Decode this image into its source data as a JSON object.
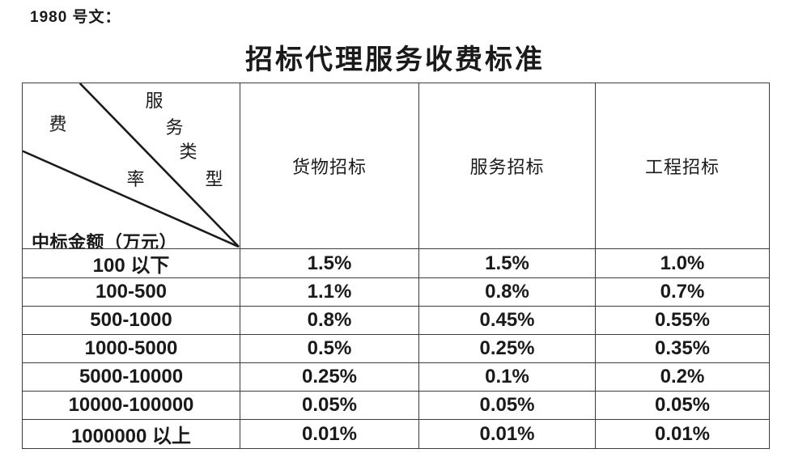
{
  "doc_ref": "1980 号文：",
  "title": "招标代理服务收费标准",
  "colors": {
    "text": "#1a1a1a",
    "border": "#3c3c3c",
    "background": "#ffffff"
  },
  "table": {
    "corner": {
      "service_type_chars": [
        "服",
        "务",
        "类",
        "型"
      ],
      "fee_rate_chars": [
        "费",
        "率"
      ],
      "amount_axis_label": "中标金额（万元）"
    },
    "columns": [
      "货物招标",
      "服务招标",
      "工程招标"
    ],
    "rows": [
      {
        "amount_range": "100 以下",
        "rates": [
          "1.5%",
          "1.5%",
          "1.0%"
        ]
      },
      {
        "amount_range": "100-500",
        "rates": [
          "1.1%",
          "0.8%",
          "0.7%"
        ]
      },
      {
        "amount_range": "500-1000",
        "rates": [
          "0.8%",
          "0.45%",
          "0.55%"
        ]
      },
      {
        "amount_range": "1000-5000",
        "rates": [
          "0.5%",
          "0.25%",
          "0.35%"
        ]
      },
      {
        "amount_range": "5000-10000",
        "rates": [
          "0.25%",
          "0.1%",
          "0.2%"
        ]
      },
      {
        "amount_range": "10000-100000",
        "rates": [
          "0.05%",
          "0.05%",
          "0.05%"
        ]
      },
      {
        "amount_range": "1000000 以上",
        "rates": [
          "0.01%",
          "0.01%",
          "0.01%"
        ]
      }
    ]
  }
}
